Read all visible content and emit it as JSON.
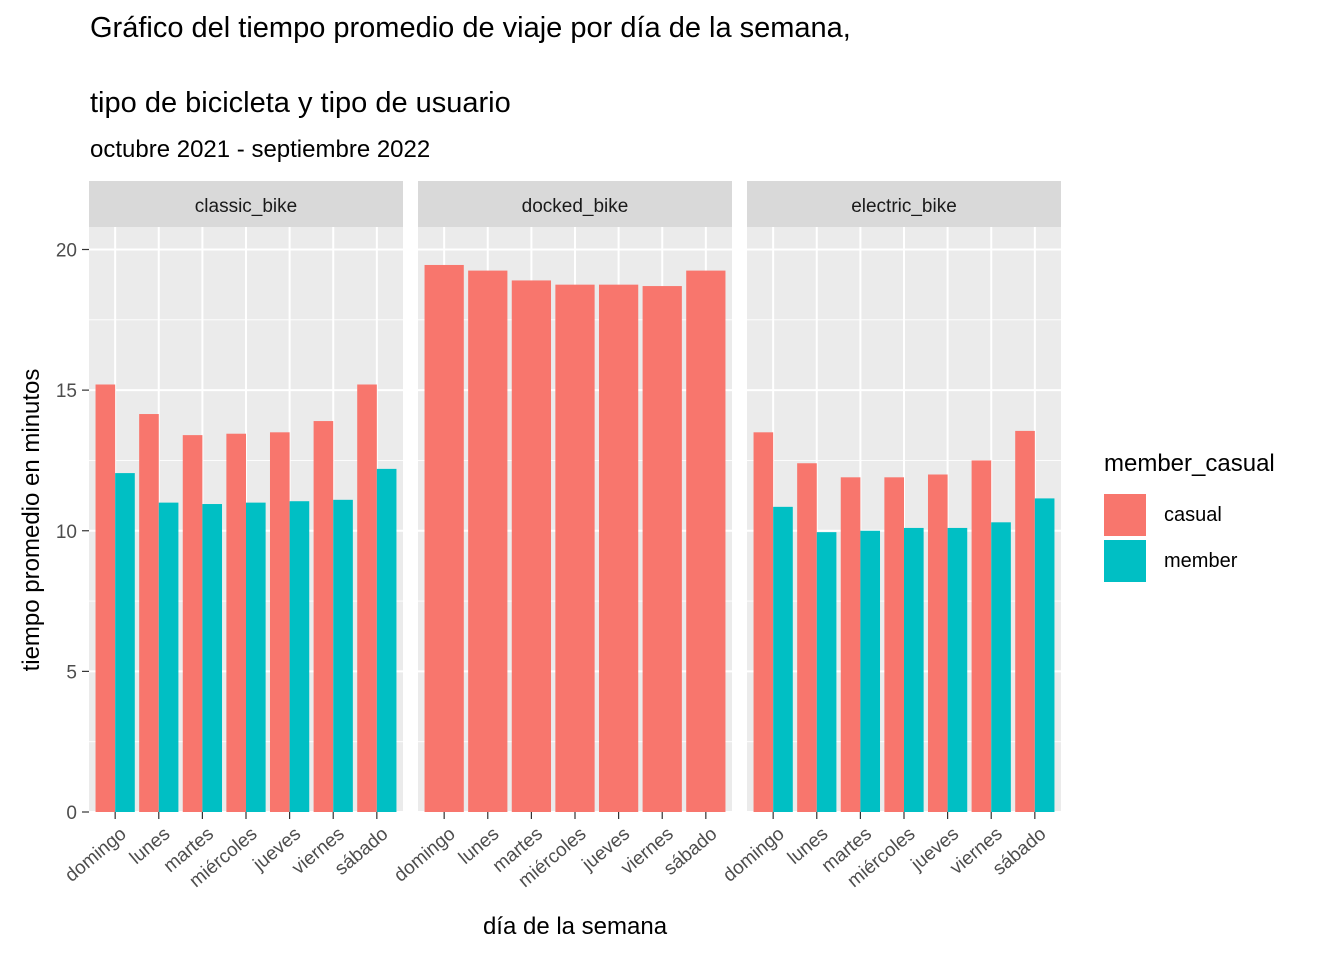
{
  "title_line1": "Gráfico del tiempo promedio de viaje por día de la semana,",
  "title_line2": "tipo de bicicleta y tipo de usuario",
  "subtitle": "octubre 2021 - septiembre 2022",
  "colors": {
    "casual": "#F8766D",
    "member": "#00BFC4",
    "panel_bg": "#EBEBEB",
    "strip_bg": "#D9D9D9",
    "grid": "#FFFFFF"
  },
  "chart_data": {
    "type": "bar",
    "title": "Gráfico del tiempo promedio de viaje por día de la semana, tipo de bicicleta y tipo de usuario",
    "subtitle": "octubre 2021 - septiembre 2022",
    "xlabel": "día de la semana",
    "ylabel": "tiempo promedio en minutos",
    "ylim": [
      0,
      20.8
    ],
    "yticks": [
      0,
      5,
      10,
      15,
      20
    ],
    "categories": [
      "domingo",
      "lunes",
      "martes",
      "miércoles",
      "jueves",
      "viernes",
      "sábado"
    ],
    "legend": {
      "title": "member_casual",
      "position": "right",
      "entries": [
        "casual",
        "member"
      ]
    },
    "grid": true,
    "facets": [
      {
        "name": "classic_bike",
        "series": [
          {
            "name": "casual",
            "values": [
              15.2,
              14.15,
              13.4,
              13.45,
              13.5,
              13.9,
              15.2
            ]
          },
          {
            "name": "member",
            "values": [
              12.05,
              11.0,
              10.95,
              11.0,
              11.05,
              11.1,
              12.2
            ]
          }
        ]
      },
      {
        "name": "docked_bike",
        "series": [
          {
            "name": "casual",
            "values": [
              19.45,
              19.25,
              18.9,
              18.75,
              18.75,
              18.7,
              19.25
            ]
          }
        ]
      },
      {
        "name": "electric_bike",
        "series": [
          {
            "name": "casual",
            "values": [
              13.5,
              12.4,
              11.9,
              11.9,
              12.0,
              12.5,
              13.55
            ]
          },
          {
            "name": "member",
            "values": [
              10.85,
              9.95,
              10.0,
              10.1,
              10.1,
              10.3,
              11.15
            ]
          }
        ]
      }
    ]
  }
}
